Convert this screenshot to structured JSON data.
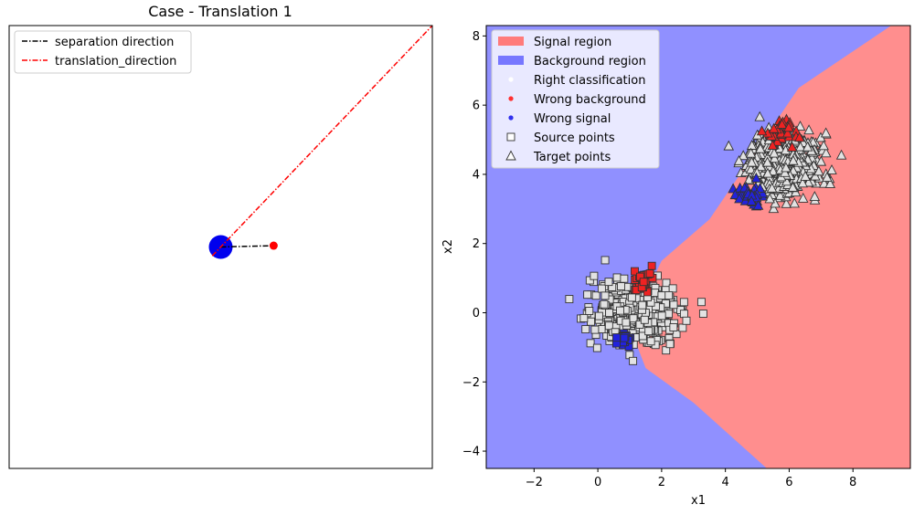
{
  "chart_data": [
    {
      "type": "line",
      "title": "Case - Translation 1",
      "xlabel": "",
      "ylabel": "",
      "xticks": [],
      "yticks": [],
      "xlim": [
        0,
        1
      ],
      "ylim": [
        0,
        1
      ],
      "grid": false,
      "legend_position": "top-left",
      "series": [
        {
          "name": "separation direction",
          "color": "#000000",
          "dash": "dashdot",
          "points": [
            [
              0.5,
              0.5
            ],
            [
              0.625,
              0.503
            ]
          ]
        },
        {
          "name": "translation_direction",
          "color": "#ff0000",
          "dash": "dashdot",
          "points": [
            [
              0.48,
              0.48
            ],
            [
              1.0,
              1.0
            ]
          ]
        }
      ],
      "markers": [
        {
          "kind": "source_center",
          "color": "#0000ee",
          "x": 0.5,
          "y": 0.5
        },
        {
          "kind": "target_center",
          "color": "#ff0000",
          "x": 0.625,
          "y": 0.503
        }
      ]
    },
    {
      "type": "scatter",
      "title": "",
      "xlabel": "x1",
      "ylabel": "x2",
      "xlim": [
        -3.5,
        9.8
      ],
      "ylim": [
        -4.5,
        8.3
      ],
      "xticks": [
        "−2",
        "0",
        "2",
        "4",
        "6",
        "8"
      ],
      "xtick_values": [
        -2,
        0,
        2,
        4,
        6,
        8
      ],
      "yticks": [
        "−4",
        "−2",
        "0",
        "2",
        "4",
        "6",
        "8"
      ],
      "ytick_values": [
        -4,
        -2,
        0,
        2,
        4,
        6,
        8
      ],
      "grid": false,
      "legend_position": "top-left",
      "legend": [
        {
          "label": "Signal region",
          "symbol": "patch",
          "color": "#ff7b7b"
        },
        {
          "label": "Background region",
          "symbol": "patch",
          "color": "#7777ff"
        },
        {
          "label": "Right classification",
          "symbol": "dot",
          "color": "#ffffff"
        },
        {
          "label": "Wrong background",
          "symbol": "dot",
          "color": "#ff3030"
        },
        {
          "label": "Wrong signal",
          "symbol": "dot",
          "color": "#3030ee"
        },
        {
          "label": "Source points",
          "symbol": "square",
          "color": "#ffffff"
        },
        {
          "label": "Target points",
          "symbol": "triangle",
          "color": "#ffffff"
        }
      ],
      "decision_boundary": [
        [
          1.0,
          -0.4
        ],
        [
          1.5,
          -1.6
        ],
        [
          3.0,
          -2.6
        ],
        [
          5.3,
          -4.5
        ],
        [
          2.0,
          1.5
        ],
        [
          3.5,
          2.7
        ],
        [
          6.3,
          6.5
        ],
        [
          9.2,
          8.3
        ]
      ],
      "region_colors": {
        "signal": "#ff8e8e",
        "background": "#9090ff"
      },
      "source_cloud": {
        "center": [
          1.2,
          0.0
        ],
        "spread": [
          1.05,
          0.72
        ],
        "count": 600
      },
      "target_cloud": {
        "center": [
          5.8,
          4.3
        ],
        "spread": [
          0.9,
          0.72
        ],
        "count": 600
      },
      "misclassified": {
        "source_wrong_background": {
          "center": [
            1.4,
            0.9
          ],
          "spread": [
            0.35,
            0.3
          ],
          "count": 35
        },
        "source_wrong_signal": {
          "center": [
            0.8,
            -0.75
          ],
          "spread": [
            0.25,
            0.2
          ],
          "count": 30
        },
        "target_wrong_background": {
          "center": [
            5.7,
            5.2
          ],
          "spread": [
            0.35,
            0.35
          ],
          "count": 40
        },
        "target_wrong_signal": {
          "center": [
            4.8,
            3.4
          ],
          "spread": [
            0.35,
            0.35
          ],
          "count": 40
        }
      }
    }
  ]
}
